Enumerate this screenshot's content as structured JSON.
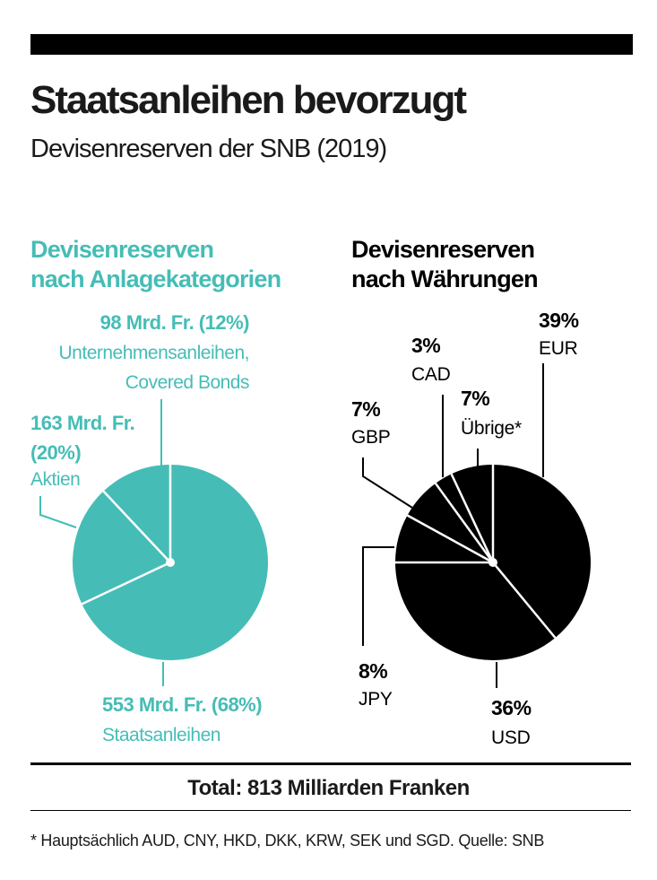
{
  "title": "Staatsanleihen bevorzugt",
  "subtitle": "Devisenreserven der SNB (2019)",
  "colors": {
    "teal": "#45bdb6",
    "black": "#000000",
    "separator": "#ffffff"
  },
  "chart_data": [
    {
      "type": "pie",
      "title_lines": [
        "Devisenreserven",
        "nach Anlagekategorien"
      ],
      "slices": [
        {
          "name": "Staatsanleihen",
          "amount_label": "553 Mrd. Fr. (68%)",
          "value": 553,
          "percent": 68
        },
        {
          "name": "Aktien",
          "amount_label_lines": [
            "163 Mrd. Fr.",
            "(20%)"
          ],
          "value": 163,
          "percent": 20
        },
        {
          "name_lines": [
            "Unternehmensanleihen,",
            "Covered Bonds"
          ],
          "amount_label": "98 Mrd. Fr. (12%)",
          "value": 98,
          "percent": 12
        }
      ]
    },
    {
      "type": "pie",
      "title_lines": [
        "Devisenreserven",
        "nach Währungen"
      ],
      "slices": [
        {
          "name": "EUR",
          "label": "39%",
          "percent": 39
        },
        {
          "name": "USD",
          "label": "36%",
          "percent": 36
        },
        {
          "name": "JPY",
          "label": "8%",
          "percent": 8
        },
        {
          "name": "GBP",
          "label": "7%",
          "percent": 7
        },
        {
          "name": "CAD",
          "label": "3%",
          "percent": 3
        },
        {
          "name": "Übrige*",
          "label": "7%",
          "percent": 7
        }
      ]
    }
  ],
  "total": "Total: 813 Milliarden Franken",
  "footnote": "* Hauptsächlich AUD, CNY, HKD, DKK, KRW, SEK und SGD. Quelle: SNB"
}
